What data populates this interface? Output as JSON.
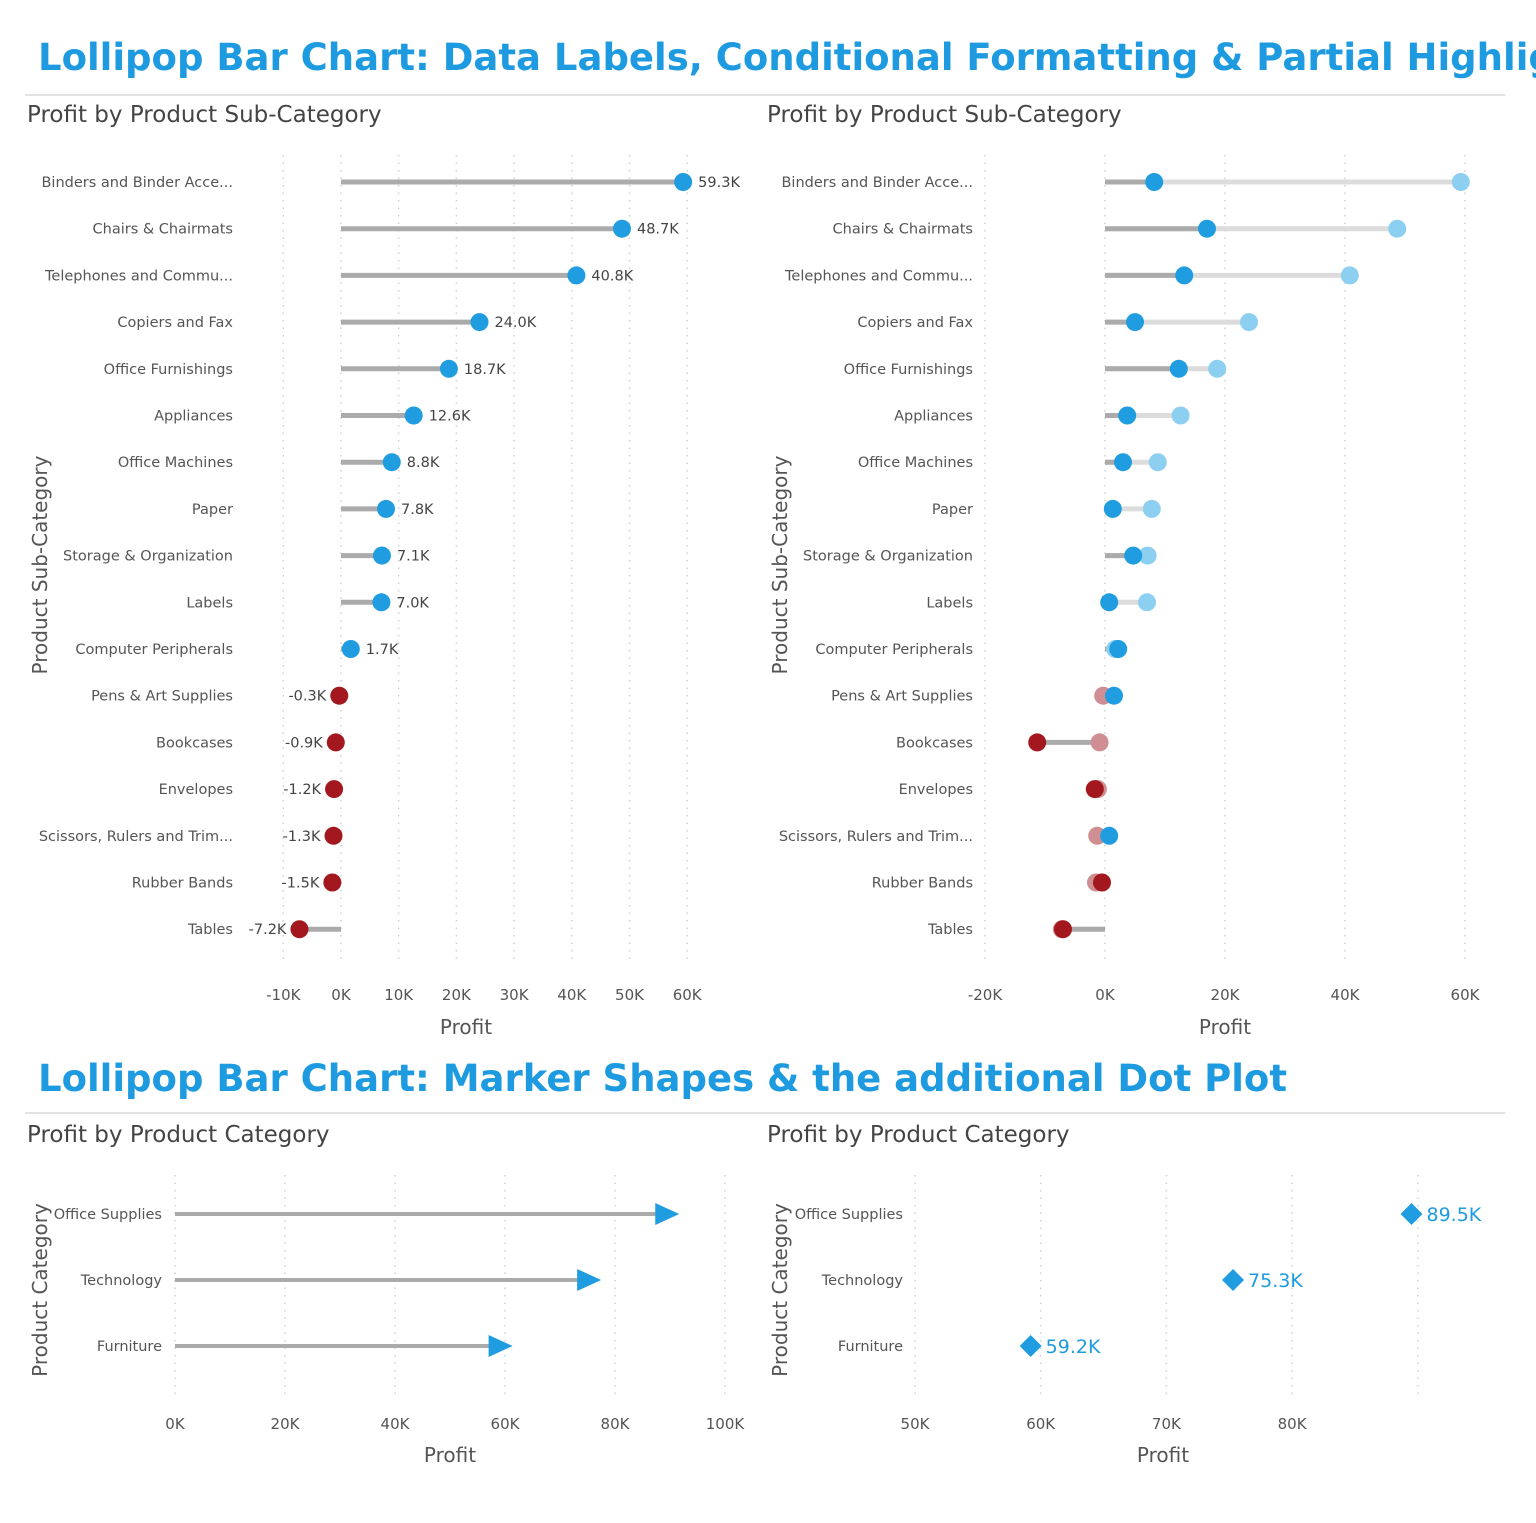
{
  "headers": [
    "Lollipop Bar Chart: Data Labels, Conditional Formatting & Partial Highlighting",
    "Lollipop Bar Chart: Marker Shapes & the additional Dot Plot"
  ],
  "colors": {
    "header": "#1E9BE0",
    "positive": "#1F9DE0",
    "positive_faded": "#8DCFF0",
    "negative": "#A3181F",
    "negative_faded": "#CF8E92",
    "stem": "#ABABAB",
    "stem_faded": "#DCDCDC",
    "grid": "#D0D0D0"
  },
  "chart_data": [
    {
      "type": "lollipop",
      "title": "Profit by Product Sub-Category",
      "xlabel": "Profit",
      "ylabel": "Product Sub-Category",
      "xlim": [
        -10,
        60
      ],
      "xticks": [
        "-10K",
        "0K",
        "10K",
        "20K",
        "30K",
        "40K",
        "50K",
        "60K"
      ],
      "xtick_values": [
        -10,
        0,
        10,
        20,
        30,
        40,
        50,
        60
      ],
      "grid": true,
      "marker": "circle",
      "conditional_formatting": "blue if positive, red if negative",
      "categories": [
        "Binders and Binder Acce...",
        "Chairs & Chairmats",
        "Telephones and Commu...",
        "Copiers and Fax",
        "Office Furnishings",
        "Appliances",
        "Office Machines",
        "Paper",
        "Storage & Organization",
        "Labels",
        "Computer Peripherals",
        "Pens & Art Supplies",
        "Bookcases",
        "Envelopes",
        "Scissors, Rulers and Trim...",
        "Rubber Bands",
        "Tables"
      ],
      "values": [
        59.3,
        48.7,
        40.8,
        24.0,
        18.7,
        12.6,
        8.8,
        7.8,
        7.1,
        7.0,
        1.7,
        -0.3,
        -0.9,
        -1.2,
        -1.3,
        -1.5,
        -7.2
      ],
      "data_labels": [
        "59.3K",
        "48.7K",
        "40.8K",
        "24.0K",
        "18.7K",
        "12.6K",
        "8.8K",
        "7.8K",
        "7.1K",
        "7.0K",
        "1.7K",
        "-0.3K",
        "-0.9K",
        "-1.2K",
        "-1.3K",
        "-1.5K",
        "-7.2K"
      ]
    },
    {
      "type": "lollipop",
      "title": "Profit by Product Sub-Category",
      "xlabel": "Profit",
      "ylabel": "Product Sub-Category",
      "xlim": [
        -20,
        60
      ],
      "xticks": [
        "-20K",
        "0K",
        "20K",
        "40K",
        "60K"
      ],
      "xtick_values": [
        -20,
        0,
        20,
        40,
        60
      ],
      "grid": true,
      "marker": "circle",
      "partial_highlighting": true,
      "categories": [
        "Binders and Binder Acce...",
        "Chairs & Chairmats",
        "Telephones and Commu...",
        "Copiers and Fax",
        "Office Furnishings",
        "Appliances",
        "Office Machines",
        "Paper",
        "Storage & Organization",
        "Labels",
        "Computer Peripherals",
        "Pens & Art Supplies",
        "Bookcases",
        "Envelopes",
        "Scissors, Rulers and Trim...",
        "Rubber Bands",
        "Tables"
      ],
      "values": [
        59.3,
        48.7,
        40.8,
        24.0,
        18.7,
        12.6,
        8.8,
        7.8,
        7.1,
        7.0,
        1.7,
        -0.3,
        -0.9,
        -1.2,
        -1.3,
        -1.5,
        -7.2
      ],
      "highlighted_values": [
        8.2,
        17.0,
        13.2,
        5.0,
        12.3,
        3.7,
        3.0,
        1.3,
        4.7,
        0.7,
        2.2,
        1.5,
        -11.3,
        -1.7,
        0.7,
        -0.5,
        -7.0
      ]
    },
    {
      "type": "lollipop",
      "title": "Profit by Product Category",
      "xlabel": "Profit",
      "ylabel": "Product Category",
      "xlim": [
        0,
        100
      ],
      "xticks": [
        "0K",
        "20K",
        "40K",
        "60K",
        "80K",
        "100K"
      ],
      "xtick_values": [
        0,
        20,
        40,
        60,
        80,
        100
      ],
      "grid": true,
      "marker": "arrow",
      "categories": [
        "Office Supplies",
        "Technology",
        "Furniture"
      ],
      "values": [
        89.5,
        75.3,
        59.2
      ]
    },
    {
      "type": "dot",
      "title": "Profit by Product Category",
      "xlabel": "Profit",
      "ylabel": "Product Category",
      "xlim": [
        50,
        90
      ],
      "xticks": [
        "50K",
        "60K",
        "70K",
        "80K"
      ],
      "xtick_values": [
        50,
        60,
        70,
        80
      ],
      "grid": true,
      "marker": "diamond",
      "categories": [
        "Office Supplies",
        "Technology",
        "Furniture"
      ],
      "values": [
        89.5,
        75.3,
        59.2
      ],
      "data_labels": [
        "89.5K",
        "75.3K",
        "59.2K"
      ]
    }
  ]
}
